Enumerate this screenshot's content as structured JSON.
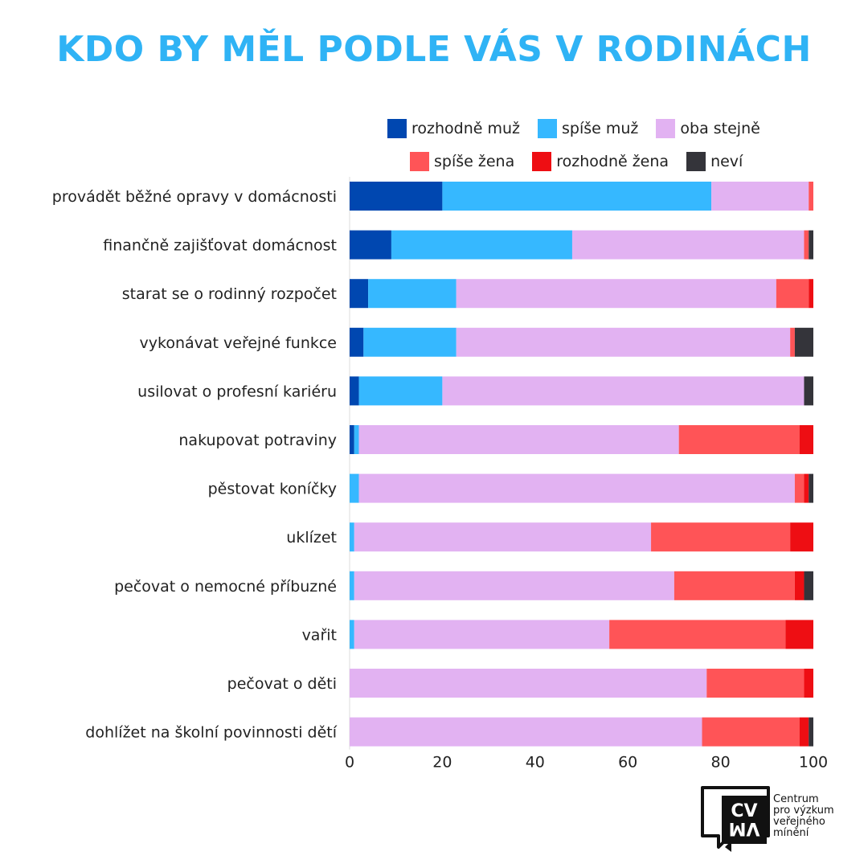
{
  "title": "KDO BY MĚL PODLE VÁS V RODINÁCH",
  "colors": {
    "title": "#2fb3f5",
    "rozhodne_muz": "#0047b0",
    "spise_muz": "#36b8ff",
    "oba_stejne": "#e2b2f2",
    "spise_zena": "#ff5457",
    "rozhodne_zena": "#ee0e13",
    "nevi": "#34343a"
  },
  "chart_data": {
    "type": "bar",
    "orientation": "horizontal",
    "stacked": true,
    "title": "KDO BY MĚL PODLE VÁS V RODINÁCH",
    "xlim": [
      0,
      100
    ],
    "xticks": [
      0,
      20,
      40,
      60,
      80,
      100
    ],
    "grid": false,
    "legend_position": "top",
    "categories": [
      "provádět běžné opravy v domácnosti",
      "finančně zajišťovat domácnost",
      "starat se o rodinný rozpočet",
      "vykonávat veřejné funkce",
      "usilovat o profesní kariéru",
      "nakupovat potraviny",
      "pěstovat koníčky",
      "uklízet",
      "pečovat o nemocné příbuzné",
      "vařit",
      "pečovat o děti",
      "dohlížet na školní povinnosti dětí"
    ],
    "series": [
      {
        "name": "rozhodně muž",
        "color": "#0047b0",
        "values": [
          20,
          9,
          4,
          3,
          2,
          1,
          0,
          0,
          0,
          0,
          0,
          0
        ]
      },
      {
        "name": "spíše muž",
        "color": "#36b8ff",
        "values": [
          58,
          39,
          19,
          20,
          18,
          1,
          2,
          1,
          1,
          1,
          0,
          0
        ]
      },
      {
        "name": "oba stejně",
        "color": "#e2b2f2",
        "values": [
          21,
          50,
          69,
          72,
          78,
          69,
          94,
          64,
          69,
          55,
          77,
          76
        ]
      },
      {
        "name": "spíše žena",
        "color": "#ff5457",
        "values": [
          1,
          1,
          7,
          1,
          0,
          26,
          2,
          30,
          26,
          38,
          21,
          21
        ]
      },
      {
        "name": "rozhodně žena",
        "color": "#ee0e13",
        "values": [
          0,
          0,
          1,
          0,
          0,
          3,
          1,
          5,
          2,
          6,
          2,
          2
        ]
      },
      {
        "name": "neví",
        "color": "#34343a",
        "values": [
          0,
          1,
          0,
          4,
          2,
          0,
          1,
          0,
          2,
          0,
          0,
          1
        ]
      }
    ]
  },
  "logo": {
    "mark_top": "CV",
    "mark_bottom": "VM",
    "line1": "Centrum",
    "line2": "pro výzkum",
    "line3": "veřejného",
    "line4": "mínění"
  }
}
